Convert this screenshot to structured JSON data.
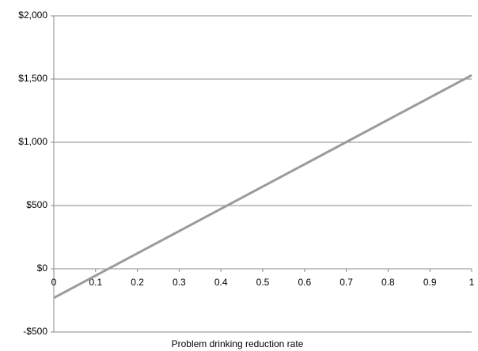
{
  "chart_data": {
    "type": "line",
    "x_label": "Problem drinking reduction rate",
    "x": [
      0,
      1
    ],
    "series": [
      {
        "color": "#9b9b9b",
        "values": [
          -230,
          1530
        ]
      }
    ],
    "xlim": [
      0,
      1
    ],
    "xticks": [
      0,
      0.1,
      0.2,
      0.3,
      0.4,
      0.5,
      0.6,
      0.7,
      0.8,
      0.9,
      1
    ],
    "ylim": [
      -500,
      2000
    ],
    "yticks": [
      {
        "value": -500,
        "label": "-$500"
      },
      {
        "value": 0,
        "label": "$0"
      },
      {
        "value": 500,
        "label": "$500"
      },
      {
        "value": 1000,
        "label": "$1,000"
      },
      {
        "value": 1500,
        "label": "$1,500"
      },
      {
        "value": 2000,
        "label": "$2,000"
      }
    ],
    "grid": true
  }
}
